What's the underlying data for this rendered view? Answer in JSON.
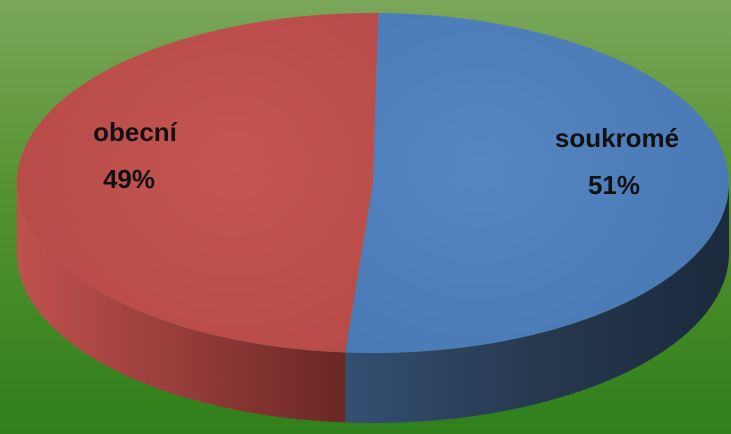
{
  "chart_data": {
    "type": "pie",
    "style": "3d",
    "title": "",
    "slices": [
      {
        "label": "soukromé",
        "value": 51,
        "value_label": "51%",
        "color": "#4f81bd"
      },
      {
        "label": "obecní",
        "value": 49,
        "value_label": "49%",
        "color": "#c0504d"
      }
    ]
  }
}
